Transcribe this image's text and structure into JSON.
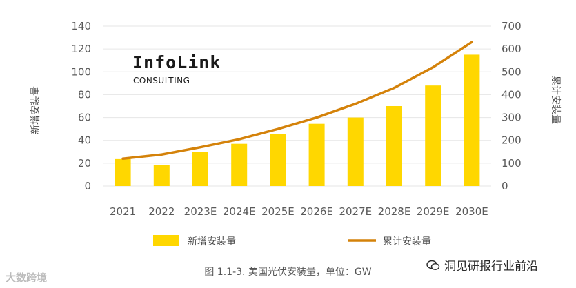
{
  "chart_data": {
    "type": "bar+line",
    "categories": [
      "2021",
      "2022",
      "2023E",
      "2024E",
      "2025E",
      "2026E",
      "2027E",
      "2028E",
      "2029E",
      "2030E"
    ],
    "series": [
      {
        "name": "新增安装量",
        "type": "bar",
        "axis": "left",
        "color": "#FFD700",
        "values": [
          23.6,
          18.6,
          30,
          37,
          45.5,
          54.5,
          60,
          70,
          88,
          115
        ]
      },
      {
        "name": "累计安装量",
        "type": "line",
        "axis": "right",
        "color": "#D4820A",
        "values": [
          120,
          138,
          170,
          205,
          250,
          300,
          360,
          430,
          520,
          630
        ]
      }
    ],
    "ylabel": "新增安装量",
    "y2label": "累计安装量",
    "ylim": [
      0,
      140
    ],
    "y2lim": [
      0,
      700
    ],
    "yticks": [
      0,
      20,
      40,
      60,
      80,
      100,
      120,
      140
    ],
    "y2ticks": [
      0,
      100,
      200,
      300,
      400,
      500,
      600,
      700
    ],
    "grid": true,
    "legend": "bottom"
  },
  "logo": {
    "name": "InfoLink",
    "subtitle": "CONSULTING"
  },
  "caption": "图 1.1-3. 美国光伏安装量，单位：GW",
  "watermark_left": "大数跨境",
  "watermark_right": "洞见研报行业前沿",
  "colors": {
    "bar": "#FFD700",
    "line": "#D4820A",
    "grid": "#e6e6e6"
  }
}
